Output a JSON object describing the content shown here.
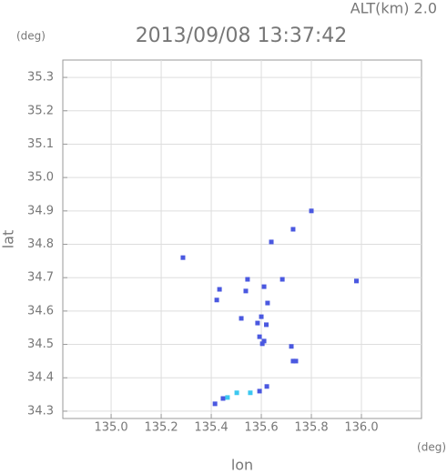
{
  "chart_data": {
    "type": "scatter",
    "title": "2013/09/08 13:37:42",
    "subtitle": "ALT(km)  2.0",
    "x_label": "lon",
    "y_label": "lat",
    "x_unit": "(deg)",
    "y_unit": "(deg)",
    "xlim": [
      134.807,
      136.24
    ],
    "ylim": [
      34.278,
      35.352
    ],
    "xticks": [
      {
        "value": 135.0,
        "label": "135.0"
      },
      135.2,
      135.4,
      135.6,
      135.8,
      {
        "value": 136.0,
        "label": "136.0"
      }
    ],
    "yticks": [
      34.3,
      34.4,
      34.5,
      34.6,
      34.7,
      34.8,
      34.9,
      {
        "value": 35.0,
        "label": "35.0"
      },
      35.1,
      35.2,
      35.3
    ],
    "grid": true,
    "series": [
      {
        "color": "#4a58e0",
        "x": [
          135.287,
          135.8,
          135.727,
          135.64,
          135.98,
          135.684,
          135.545,
          135.433,
          135.422,
          135.538,
          135.611,
          135.625,
          135.6,
          135.52,
          135.585,
          135.62,
          135.593,
          135.611,
          135.604,
          135.72,
          135.727,
          135.738,
          135.622,
          135.593,
          135.447,
          135.415
        ],
        "values": [
          34.76,
          34.9,
          34.845,
          34.807,
          34.69,
          34.695,
          34.695,
          34.665,
          34.633,
          34.66,
          34.673,
          34.624,
          34.583,
          34.578,
          34.564,
          34.559,
          34.523,
          34.51,
          34.502,
          34.494,
          34.45,
          34.45,
          34.374,
          34.36,
          34.338,
          34.322
        ]
      },
      {
        "color": "#3cc8f0",
        "x": [
          135.502,
          135.465,
          135.556
        ],
        "values": [
          34.355,
          34.341,
          34.355
        ]
      }
    ]
  }
}
